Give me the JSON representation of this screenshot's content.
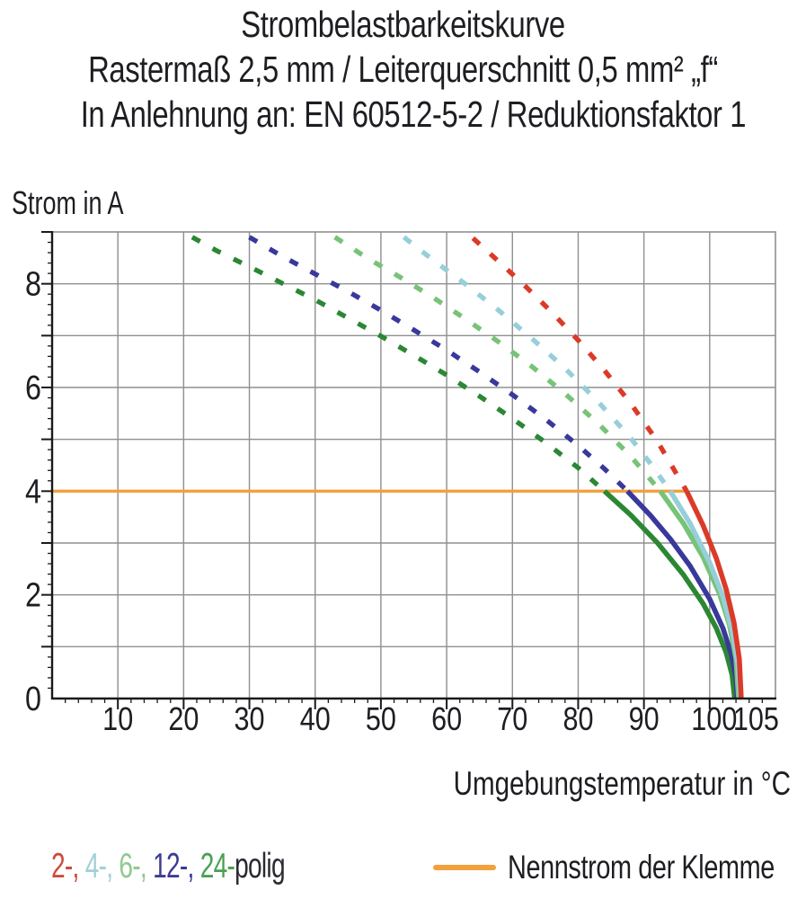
{
  "title": {
    "line1": "Strombelastbarkeitskurve",
    "line2": "Rastermaß 2,5 mm / Leiterquerschnitt 0,5 mm² „f“",
    "line3": "In Anlehnung an: EN 60512-5-2 / Reduktionsfaktor 1"
  },
  "chart_data": {
    "type": "line",
    "title": "Strombelastbarkeitskurve",
    "xlabel": "Umgebungstemperatur in °C",
    "ylabel": "Strom in A",
    "xlim": [
      0,
      110
    ],
    "ylim": [
      0,
      9
    ],
    "grid": true,
    "grid_color": "#8F8F8F",
    "axis_color": "#1A1A1A",
    "x_major_step": 10,
    "x_minor_step": 2,
    "y_major_step": 1,
    "y_minor_step": 0.2,
    "x_tick_labels": [
      {
        "v": 10,
        "label": "10"
      },
      {
        "v": 20,
        "label": "20"
      },
      {
        "v": 30,
        "label": "30"
      },
      {
        "v": 40,
        "label": "40"
      },
      {
        "v": 50,
        "label": "50"
      },
      {
        "v": 60,
        "label": "60"
      },
      {
        "v": 70,
        "label": "70"
      },
      {
        "v": 80,
        "label": "80"
      },
      {
        "v": 90,
        "label": "90"
      },
      {
        "v": 100,
        "label": "100",
        "dx": 5
      },
      {
        "v": 105,
        "label": "105",
        "dx": 15
      }
    ],
    "y_tick_labels": [
      {
        "v": 0,
        "label": "0"
      },
      {
        "v": 2,
        "label": "2"
      },
      {
        "v": 4,
        "label": "4"
      },
      {
        "v": 6,
        "label": "6"
      },
      {
        "v": 8,
        "label": "8"
      }
    ],
    "nominal_line": {
      "y": 4,
      "x_start": 0,
      "x_end": 96.5,
      "color": "#F2A03C",
      "label": "Nennstrom der Klemme"
    },
    "series": [
      {
        "name": "24-polig",
        "color": "#2B8733",
        "style_above_4A": "dashed",
        "style_below_4A": "solid",
        "dashed": [
          [
            21.3,
            8.9
          ],
          [
            25,
            8.64
          ],
          [
            30,
            8.33
          ],
          [
            35,
            8.01
          ],
          [
            40,
            7.69
          ],
          [
            45,
            7.34
          ],
          [
            50,
            6.99
          ],
          [
            55,
            6.62
          ],
          [
            60,
            6.24
          ],
          [
            65,
            5.83
          ],
          [
            70,
            5.4
          ],
          [
            75,
            4.94
          ],
          [
            80,
            4.45
          ],
          [
            84,
            4.0
          ]
        ],
        "solid": [
          [
            84,
            4.0
          ],
          [
            88,
            3.54
          ],
          [
            92,
            3.01
          ],
          [
            96,
            2.39
          ],
          [
            99,
            1.83
          ],
          [
            101,
            1.36
          ],
          [
            102.5,
            0.89
          ],
          [
            103.4,
            0.46
          ],
          [
            103.8,
            0
          ]
        ]
      },
      {
        "name": "12-polig",
        "color": "#39389B",
        "style_above_4A": "dashed",
        "style_below_4A": "solid",
        "dashed": [
          [
            30,
            8.9
          ],
          [
            35,
            8.53
          ],
          [
            40,
            8.19
          ],
          [
            45,
            7.85
          ],
          [
            50,
            7.49
          ],
          [
            55,
            7.11
          ],
          [
            60,
            6.72
          ],
          [
            65,
            6.3
          ],
          [
            70,
            5.86
          ],
          [
            75,
            5.39
          ],
          [
            80,
            4.88
          ],
          [
            84,
            4.43
          ],
          [
            87.5,
            4.0
          ]
        ],
        "solid": [
          [
            87.5,
            4.0
          ],
          [
            91,
            3.53
          ],
          [
            94,
            3.08
          ],
          [
            97,
            2.56
          ],
          [
            100,
            1.92
          ],
          [
            102,
            1.36
          ],
          [
            103.3,
            0.85
          ],
          [
            104,
            0.38
          ],
          [
            104.2,
            0
          ]
        ]
      },
      {
        "name": "6-polig",
        "color": "#77C377",
        "style_above_4A": "dashed",
        "style_below_4A": "solid",
        "dashed": [
          [
            43,
            8.9
          ],
          [
            48,
            8.49
          ],
          [
            53,
            8.12
          ],
          [
            58,
            7.73
          ],
          [
            63,
            7.31
          ],
          [
            68,
            6.87
          ],
          [
            73,
            6.4
          ],
          [
            78,
            5.88
          ],
          [
            83,
            5.31
          ],
          [
            88,
            4.67
          ],
          [
            92.5,
            4.0
          ]
        ],
        "solid": [
          [
            92.5,
            4.0
          ],
          [
            96,
            3.38
          ],
          [
            99,
            2.73
          ],
          [
            101.5,
            2.02
          ],
          [
            103,
            1.42
          ],
          [
            104,
            0.77
          ],
          [
            104.4,
            0
          ]
        ]
      },
      {
        "name": "4-polig",
        "color": "#96CFD9",
        "style_above_4A": "dashed",
        "style_below_4A": "solid",
        "dashed": [
          [
            53.5,
            8.9
          ],
          [
            58,
            8.45
          ],
          [
            63,
            7.98
          ],
          [
            68,
            7.48
          ],
          [
            73,
            6.94
          ],
          [
            78,
            6.37
          ],
          [
            83,
            5.73
          ],
          [
            88,
            5.02
          ],
          [
            91,
            4.53
          ],
          [
            94,
            4.0
          ]
        ],
        "solid": [
          [
            94,
            4.0
          ],
          [
            97,
            3.38
          ],
          [
            100,
            2.62
          ],
          [
            102,
            1.97
          ],
          [
            103.5,
            1.27
          ],
          [
            104.3,
            0.66
          ],
          [
            104.6,
            0
          ]
        ]
      },
      {
        "name": "2-polig",
        "color": "#DC3A28",
        "style_above_4A": "dashed",
        "style_below_4A": "solid",
        "dashed": [
          [
            64,
            8.88
          ],
          [
            68,
            8.42
          ],
          [
            72,
            7.95
          ],
          [
            76,
            7.45
          ],
          [
            80,
            6.91
          ],
          [
            84,
            6.33
          ],
          [
            88,
            5.69
          ],
          [
            92,
            4.97
          ],
          [
            96.5,
            4.0
          ]
        ],
        "solid": [
          [
            96.5,
            4.0
          ],
          [
            99,
            3.34
          ],
          [
            101,
            2.71
          ],
          [
            102.5,
            2.11
          ],
          [
            103.7,
            1.46
          ],
          [
            104.5,
            0.76
          ],
          [
            104.8,
            0
          ]
        ]
      }
    ]
  },
  "legend": {
    "parts": [
      {
        "text": "2-, ",
        "color": "#CE4A3E"
      },
      {
        "text": "4-, ",
        "color": "#A2CFD8"
      },
      {
        "text": "6-, ",
        "color": "#8FC98F"
      },
      {
        "text": "12-, ",
        "color": "#3C3C92"
      },
      {
        "text": "24-",
        "color": "#49A153"
      },
      {
        "text": "polig",
        "color": "#2A2A31"
      }
    ],
    "nominal_label": "Nennstrom der Klemme"
  }
}
